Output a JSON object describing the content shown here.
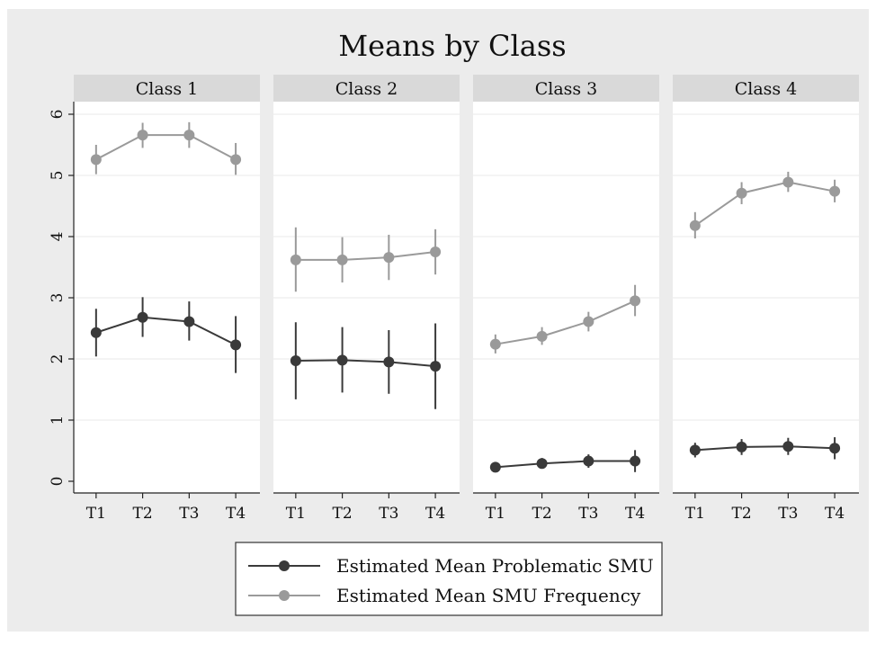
{
  "chart_data": {
    "type": "line",
    "title": "Means by Class",
    "panels": [
      {
        "label": "Class 1",
        "series": [
          {
            "name": "Estimated Mean Problematic SMU",
            "values": [
              2.43,
              2.68,
              2.61,
              2.23
            ],
            "ci_low": [
              2.04,
              2.36,
              2.3,
              1.77
            ],
            "ci_high": [
              2.82,
              3.01,
              2.94,
              2.7
            ]
          },
          {
            "name": "Estimated Mean SMU Frequency",
            "values": [
              5.26,
              5.66,
              5.66,
              5.26
            ],
            "ci_low": [
              5.02,
              5.45,
              5.45,
              5.01
            ],
            "ci_high": [
              5.5,
              5.86,
              5.87,
              5.53
            ]
          }
        ]
      },
      {
        "label": "Class 2",
        "series": [
          {
            "name": "Estimated Mean Problematic SMU",
            "values": [
              1.97,
              1.98,
              1.95,
              1.88
            ],
            "ci_low": [
              1.34,
              1.45,
              1.43,
              1.18
            ],
            "ci_high": [
              2.6,
              2.52,
              2.47,
              2.58
            ]
          },
          {
            "name": "Estimated Mean SMU Frequency",
            "values": [
              3.62,
              3.62,
              3.66,
              3.75
            ],
            "ci_low": [
              3.1,
              3.25,
              3.29,
              3.38
            ],
            "ci_high": [
              4.15,
              3.99,
              4.03,
              4.12
            ]
          }
        ]
      },
      {
        "label": "Class 3",
        "series": [
          {
            "name": "Estimated Mean Problematic SMU",
            "values": [
              0.23,
              0.29,
              0.33,
              0.33
            ],
            "ci_low": [
              0.16,
              0.21,
              0.22,
              0.15
            ],
            "ci_high": [
              0.3,
              0.38,
              0.44,
              0.51
            ]
          },
          {
            "name": "Estimated Mean SMU Frequency",
            "values": [
              2.24,
              2.37,
              2.61,
              2.95
            ],
            "ci_low": [
              2.09,
              2.23,
              2.45,
              2.7
            ],
            "ci_high": [
              2.4,
              2.52,
              2.77,
              3.21
            ]
          }
        ]
      },
      {
        "label": "Class 4",
        "series": [
          {
            "name": "Estimated Mean Problematic SMU",
            "values": [
              0.51,
              0.56,
              0.57,
              0.54
            ],
            "ci_low": [
              0.39,
              0.43,
              0.43,
              0.36
            ],
            "ci_high": [
              0.63,
              0.69,
              0.71,
              0.72
            ]
          },
          {
            "name": "Estimated Mean SMU Frequency",
            "values": [
              4.18,
              4.71,
              4.89,
              4.74
            ],
            "ci_low": [
              3.97,
              4.53,
              4.73,
              4.56
            ],
            "ci_high": [
              4.4,
              4.89,
              5.06,
              4.93
            ]
          }
        ]
      }
    ],
    "categories": [
      "T1",
      "T2",
      "T3",
      "T4"
    ],
    "ylim": [
      0,
      6
    ],
    "yticks": [
      0,
      1,
      2,
      3,
      4,
      5,
      6
    ],
    "grid": true,
    "legend": {
      "position": "bottom",
      "entries": [
        {
          "label": "Estimated Mean Problematic SMU",
          "color": "#3a3a3a"
        },
        {
          "label": "Estimated Mean SMU Frequency",
          "color": "#9a9a9a"
        }
      ]
    }
  },
  "colors": {
    "outer_background": "#ececec",
    "panel_background": "#ffffff",
    "panel_header": "#d9d9d9",
    "grid": "#e8e8e8",
    "series_dark": "#3a3a3a",
    "series_light": "#9a9a9a"
  }
}
